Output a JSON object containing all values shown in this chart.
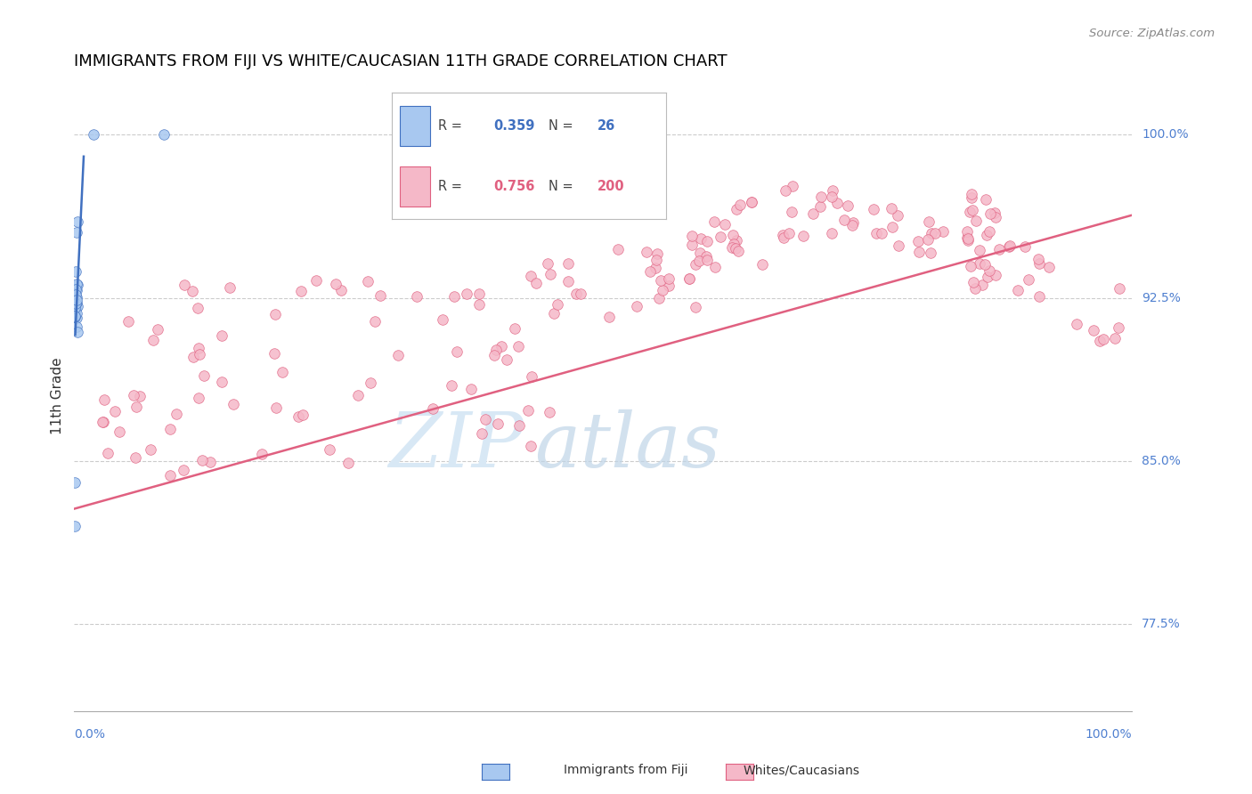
{
  "title": "IMMIGRANTS FROM FIJI VS WHITE/CAUCASIAN 11TH GRADE CORRELATION CHART",
  "source": "Source: ZipAtlas.com",
  "ylabel": "11th Grade",
  "blue_R": "0.359",
  "blue_N": "26",
  "pink_R": "0.756",
  "pink_N": "200",
  "blue_color": "#A8C8F0",
  "pink_color": "#F5B8C8",
  "blue_line_color": "#4070C0",
  "pink_line_color": "#E06080",
  "legend_text_blue": "#4070C0",
  "legend_text_pink": "#E06080",
  "right_label_color": "#5080D0",
  "bottom_label_color": "#5080D0",
  "watermark_color": "#D8E8F5",
  "watermark_zip_color": "#C0D5E8",
  "background_color": "#FFFFFF",
  "grid_color": "#CCCCCC",
  "xlim": [
    0.0,
    1.0
  ],
  "ylim": [
    0.735,
    1.025
  ],
  "ytick_vals": [
    0.775,
    0.85,
    0.925,
    1.0
  ],
  "ytick_labels": [
    "77.5%",
    "85.0%",
    "92.5%",
    "100.0%"
  ],
  "pink_line_x": [
    0.0,
    1.0
  ],
  "pink_line_y": [
    0.828,
    0.963
  ],
  "blue_line_x": [
    0.001,
    0.009
  ],
  "blue_line_y": [
    0.908,
    0.99
  ]
}
